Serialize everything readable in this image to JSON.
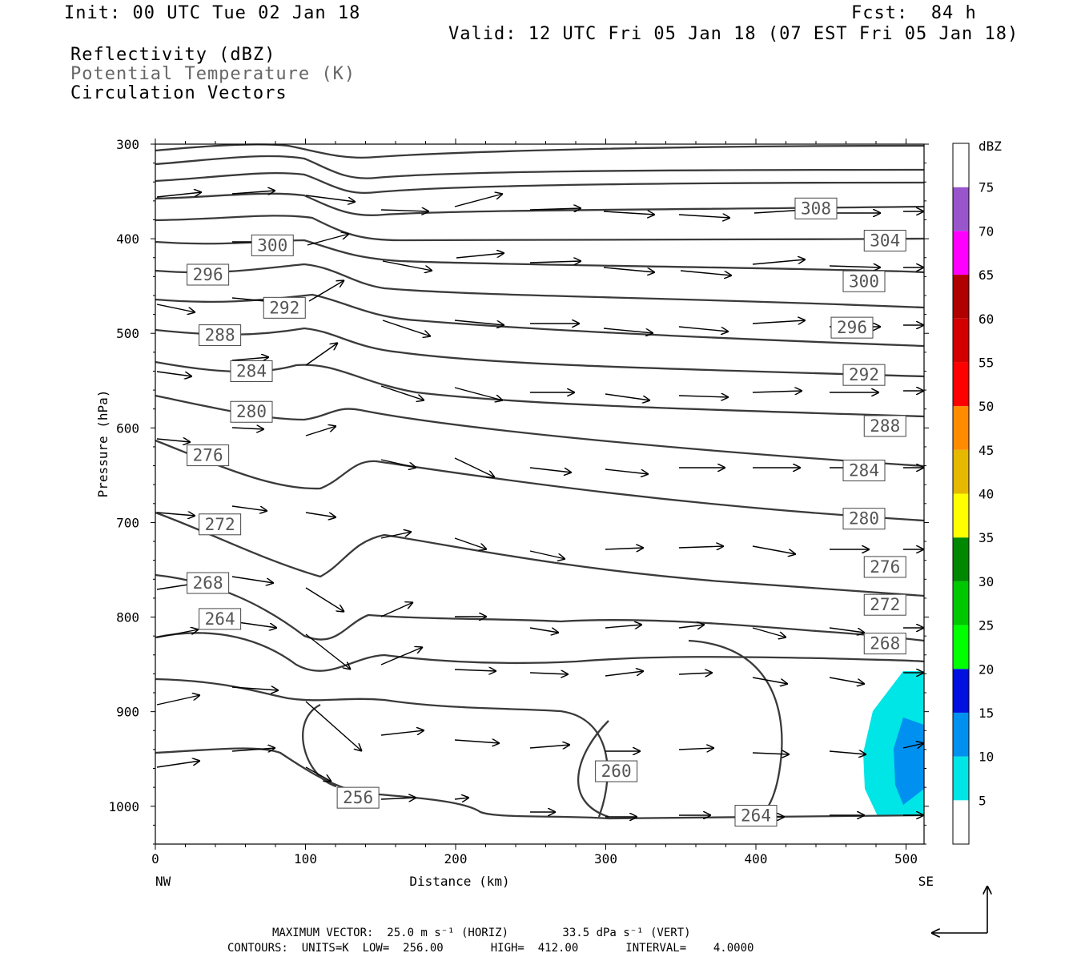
{
  "header": {
    "init": "Init: 00 UTC Tue 02 Jan 18",
    "fcst": "Fcst:  84 h",
    "valid": "Valid: 12 UTC Fri 05 Jan 18 (07 EST Fri 05 Jan 18)",
    "field1": "Reflectivity (dBZ)",
    "field2": "Potential Temperature (K)",
    "field3": "Circulation Vectors"
  },
  "footer": {
    "line1": "MAXIMUM VECTOR:  25.0 m s⁻¹ (HORIZ)        33.5 dPa s⁻¹ (VERT)",
    "line2": "CONTOURS:  UNITS=K  LOW=  256.00       HIGH=  412.00       INTERVAL=    4.0000"
  },
  "chart_data": {
    "type": "cross-section",
    "xlabel": "Distance (km)",
    "ylabel": "Pressure (hPa)",
    "xlim": [
      0,
      512
    ],
    "ylim": [
      1040,
      300
    ],
    "x_ticks": [
      0,
      100,
      200,
      300,
      400,
      500
    ],
    "y_ticks": [
      300,
      400,
      500,
      600,
      700,
      800,
      900,
      1000
    ],
    "x_end_labels": {
      "left": "NW",
      "right": "SE"
    },
    "colorbar": {
      "title": "dBZ",
      "levels": [
        5,
        10,
        15,
        20,
        25,
        30,
        35,
        40,
        45,
        50,
        55,
        60,
        65,
        70,
        75
      ],
      "colors": [
        "#ffffff",
        "#00e5e5",
        "#0090f0",
        "#0010e0",
        "#00ff00",
        "#00c800",
        "#008800",
        "#ffff00",
        "#e6b800",
        "#ff8c00",
        "#ff0000",
        "#d40000",
        "#b00000",
        "#ff00ff",
        "#9955cc",
        "#ffffff"
      ]
    },
    "theta_labels": [
      {
        "value": "308",
        "x": 440,
        "p": 368
      },
      {
        "value": "304",
        "x": 486,
        "p": 402
      },
      {
        "value": "300",
        "x": 78,
        "p": 407
      },
      {
        "value": "300",
        "x": 472,
        "p": 445
      },
      {
        "value": "296",
        "x": 35,
        "p": 438
      },
      {
        "value": "296",
        "x": 464,
        "p": 494
      },
      {
        "value": "292",
        "x": 86,
        "p": 473
      },
      {
        "value": "292",
        "x": 472,
        "p": 544
      },
      {
        "value": "288",
        "x": 43,
        "p": 502
      },
      {
        "value": "288",
        "x": 486,
        "p": 598
      },
      {
        "value": "284",
        "x": 64,
        "p": 540
      },
      {
        "value": "284",
        "x": 472,
        "p": 645
      },
      {
        "value": "280",
        "x": 64,
        "p": 583
      },
      {
        "value": "280",
        "x": 472,
        "p": 696
      },
      {
        "value": "276",
        "x": 35,
        "p": 629
      },
      {
        "value": "276",
        "x": 486,
        "p": 747
      },
      {
        "value": "272",
        "x": 43,
        "p": 702
      },
      {
        "value": "272",
        "x": 486,
        "p": 787
      },
      {
        "value": "268",
        "x": 35,
        "p": 764
      },
      {
        "value": "268",
        "x": 486,
        "p": 828
      },
      {
        "value": "264",
        "x": 43,
        "p": 802
      },
      {
        "value": "264",
        "x": 400,
        "p": 1010
      },
      {
        "value": "260",
        "x": 307,
        "p": 963
      },
      {
        "value": "256",
        "x": 135,
        "p": 991
      }
    ],
    "grid": false
  }
}
